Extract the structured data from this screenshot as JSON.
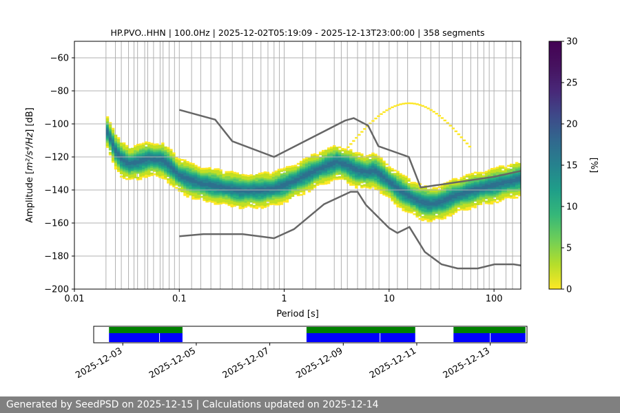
{
  "chart_data": {
    "type": "heatmap",
    "title": "HP.PVO..HHN | 100.0Hz | 2025-12-02T05:19:09 - 2025-12-13T23:00:00 | 358 segments",
    "xlabel": "Period [s]",
    "ylabel_prefix": "Amplitude [",
    "ylabel_units": "m²/s⁴/Hz",
    "ylabel_suffix": "] [dB]",
    "x_scale": "log",
    "xlim": [
      0.01,
      180
    ],
    "ylim": [
      -200,
      -50
    ],
    "x_ticks": [
      {
        "value": 0.01,
        "label": "0.01"
      },
      {
        "value": 0.1,
        "label": "0.1"
      },
      {
        "value": 1,
        "label": "1"
      },
      {
        "value": 10,
        "label": "10"
      },
      {
        "value": 100,
        "label": "100"
      }
    ],
    "y_ticks": [
      {
        "value": -200,
        "label": "−200"
      },
      {
        "value": -180,
        "label": "−180"
      },
      {
        "value": -160,
        "label": "−160"
      },
      {
        "value": -140,
        "label": "−140"
      },
      {
        "value": -120,
        "label": "−120"
      },
      {
        "value": -100,
        "label": "−100"
      },
      {
        "value": -80,
        "label": "−80"
      },
      {
        "value": -60,
        "label": "−60"
      }
    ],
    "grid_period_lines": [
      0.02,
      0.0246,
      0.028,
      0.0328,
      0.037,
      0.04,
      0.0468,
      0.05,
      0.0568,
      0.0656,
      0.07,
      0.08,
      0.09,
      0.1,
      0.131,
      0.16,
      0.2,
      0.246,
      0.32,
      0.4,
      0.5,
      0.6,
      0.7,
      0.8,
      0.9,
      1.0,
      1.5,
      2.0,
      3.0,
      3.5,
      4.0,
      5.0,
      6.0,
      7.0,
      8.0,
      10.0,
      12.0,
      15.0,
      20.0,
      25.0,
      30.0,
      40.0,
      50.0,
      60.0,
      70.0,
      80.0,
      90.0,
      100.0,
      130.0,
      150.0
    ],
    "nhnm": {
      "name": "NHNM",
      "points": [
        [
          0.1,
          -91.5
        ],
        [
          0.22,
          -97.4
        ],
        [
          0.32,
          -110.5
        ],
        [
          0.8,
          -120
        ],
        [
          3.8,
          -98
        ],
        [
          4.6,
          -96.5
        ],
        [
          6.3,
          -101
        ],
        [
          7.9,
          -113.5
        ],
        [
          15.4,
          -120
        ],
        [
          20,
          -138.5
        ],
        [
          100,
          -132
        ],
        [
          180,
          -128.5
        ]
      ]
    },
    "nlnm": {
      "name": "NLNM",
      "points": [
        [
          0.1,
          -168
        ],
        [
          0.17,
          -166.7
        ],
        [
          0.4,
          -166.7
        ],
        [
          0.8,
          -169.2
        ],
        [
          1.24,
          -163.7
        ],
        [
          2.4,
          -148.6
        ],
        [
          4.3,
          -141.1
        ],
        [
          5.0,
          -141.1
        ],
        [
          6.0,
          -149
        ],
        [
          10,
          -163
        ],
        [
          12,
          -166
        ],
        [
          15.6,
          -162.4
        ],
        [
          21.9,
          -177.5
        ],
        [
          31.6,
          -185
        ],
        [
          45,
          -187.5
        ],
        [
          70,
          -187.5
        ],
        [
          101,
          -185
        ],
        [
          154,
          -185
        ],
        [
          180,
          -185.7
        ]
      ]
    },
    "colorbar": {
      "label": "[%]",
      "min": 0,
      "max": 30,
      "ticks": [
        {
          "value": 0,
          "label": "0"
        },
        {
          "value": 5,
          "label": "5"
        },
        {
          "value": 10,
          "label": "10"
        },
        {
          "value": 15,
          "label": "15"
        },
        {
          "value": 20,
          "label": "20"
        },
        {
          "value": 25,
          "label": "25"
        },
        {
          "value": 30,
          "label": "30"
        }
      ]
    },
    "density_profile": [
      [
        0.02,
        -103
      ],
      [
        0.0246,
        -116
      ],
      [
        0.028,
        -121
      ],
      [
        0.0328,
        -124
      ],
      [
        0.04,
        -123
      ],
      [
        0.05,
        -121
      ],
      [
        0.06,
        -121.5
      ],
      [
        0.07,
        -122
      ],
      [
        0.08,
        -125
      ],
      [
        0.1,
        -131
      ],
      [
        0.13,
        -134
      ],
      [
        0.16,
        -136
      ],
      [
        0.2,
        -137
      ],
      [
        0.3,
        -139
      ],
      [
        0.4,
        -140.5
      ],
      [
        0.6,
        -140
      ],
      [
        0.8,
        -139
      ],
      [
        1.0,
        -137
      ],
      [
        1.3,
        -134
      ],
      [
        1.6,
        -131
      ],
      [
        2.0,
        -128
      ],
      [
        2.6,
        -125
      ],
      [
        3.2,
        -123
      ],
      [
        4.0,
        -125
      ],
      [
        5.0,
        -128
      ],
      [
        6.3,
        -129
      ],
      [
        7.2,
        -128
      ],
      [
        8.0,
        -130
      ],
      [
        10,
        -135
      ],
      [
        12.6,
        -140
      ],
      [
        16,
        -144
      ],
      [
        20,
        -147
      ],
      [
        25,
        -148.5
      ],
      [
        32,
        -147
      ],
      [
        40,
        -144
      ],
      [
        63,
        -140
      ],
      [
        100,
        -137
      ],
      [
        180,
        -133
      ]
    ]
  },
  "timeline": {
    "tick_labels": [
      "2025-12-03",
      "2025-12-05",
      "2025-12-07",
      "2025-12-09",
      "2025-12-11",
      "2025-12-13"
    ],
    "x_range": [
      "2025-12-02",
      "2025-12-14"
    ],
    "segments": [
      {
        "start": "2025-12-02 15:00",
        "end": "2025-12-04 15:00",
        "green": true,
        "blue_split": "2025-12-04 00:00"
      },
      {
        "start": "2025-12-08 00:00",
        "end": "2025-12-10 23:00",
        "green": true,
        "blue_split": "2025-12-10 00:00"
      },
      {
        "start": "2025-12-12 00:00",
        "end": "2025-12-13 23:00",
        "green": true,
        "blue_split": "2025-12-13 00:00"
      }
    ],
    "color_green": "#008000",
    "color_blue": "#0000ff"
  },
  "footer": {
    "text": "Generated by SeedPSD on 2025-12-15 | Calculations updated on 2025-12-14"
  }
}
